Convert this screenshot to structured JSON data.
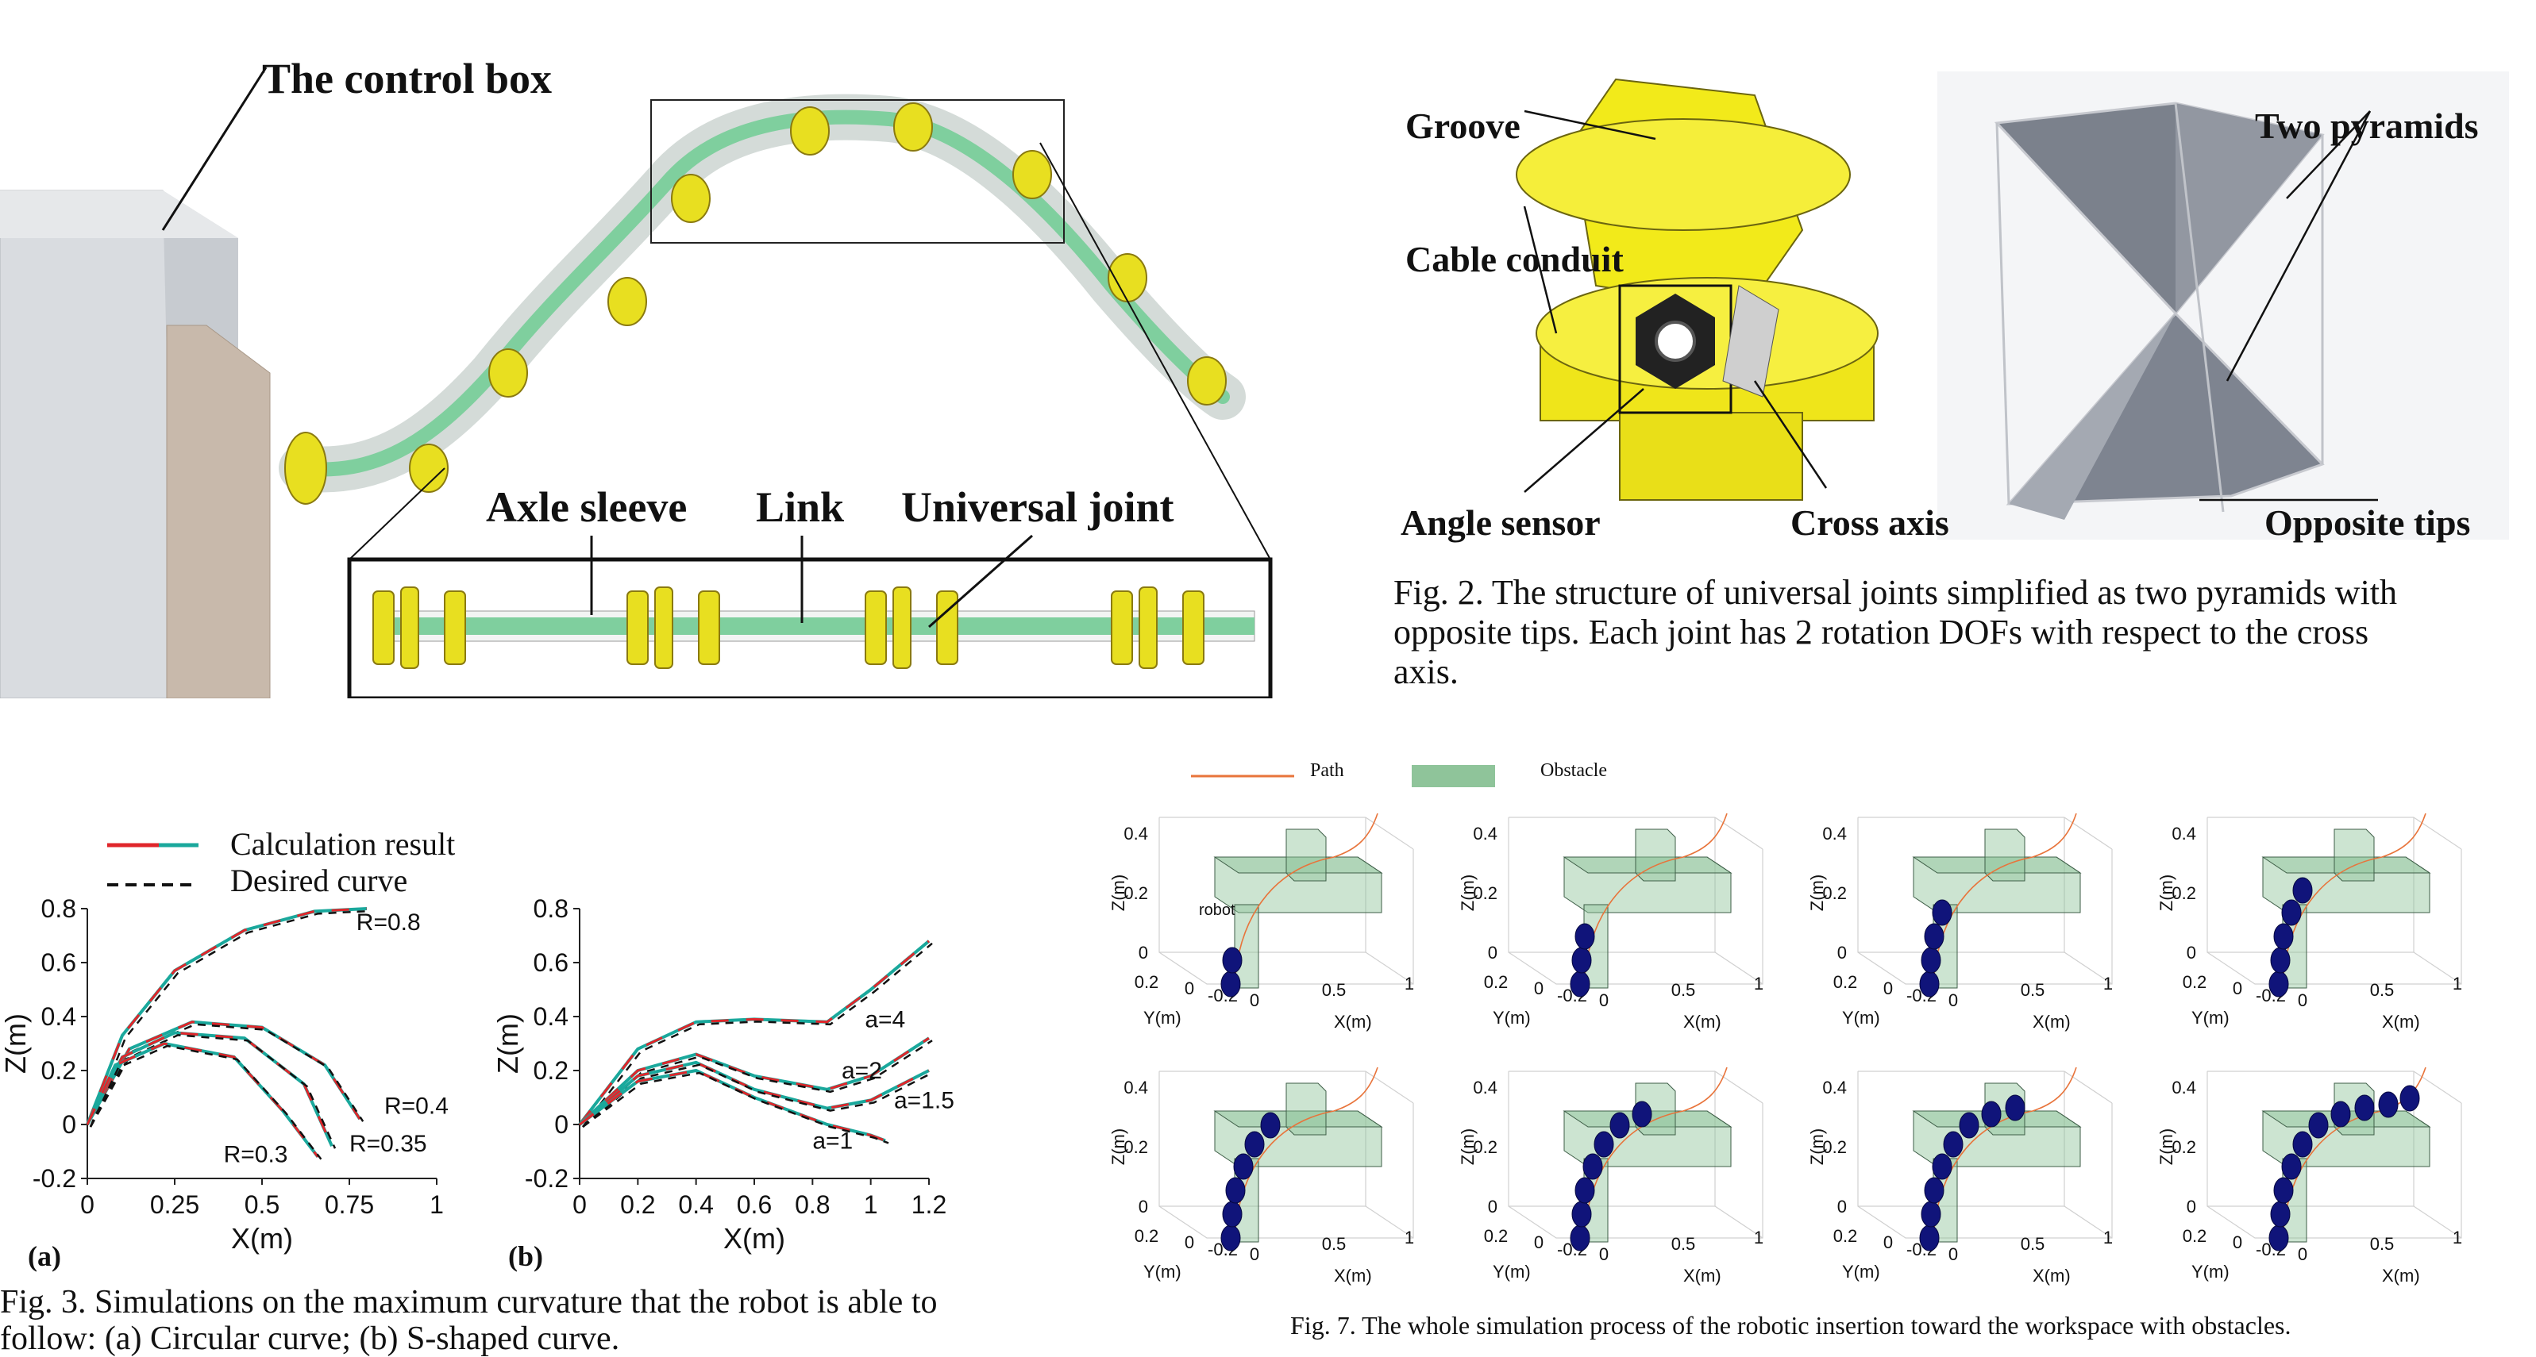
{
  "fig1": {
    "labels": {
      "control_box": "The control box",
      "axle_sleeve": "Axle sleeve",
      "link": "Link",
      "universal_joint": "Universal joint"
    }
  },
  "fig2": {
    "labels": {
      "groove": "Groove",
      "cable_conduit": "Cable conduit",
      "angle_sensor": "Angle sensor",
      "cross_axis": "Cross axis",
      "two_pyramids": "Two pyramids",
      "opposite_tips": "Opposite tips"
    },
    "caption": {
      "line1": "Fig. 2.  The structure of universal joints simplified as two pyramids with",
      "line2": "opposite tips. Each joint has 2 rotation DOFs with respect to the cross",
      "line3": "axis."
    }
  },
  "fig3": {
    "legend": {
      "calc": "Calculation result",
      "desired": "Desired curve"
    },
    "panel_a": {
      "tag": "(a)",
      "xlabel": "X(m)",
      "ylabel": "Z(m)",
      "xticks": [
        "0",
        "0.25",
        "0.5",
        "0.75",
        "1"
      ],
      "yticks": [
        "0.8",
        "0.6",
        "0.4",
        "0.2",
        "0",
        "-0.2"
      ],
      "curve_labels": [
        "R=0.8",
        "R=0.4",
        "R=0.35",
        "R=0.3"
      ]
    },
    "panel_b": {
      "tag": "(b)",
      "xlabel": "X(m)",
      "ylabel": "Z(m)",
      "xticks": [
        "0",
        "0.2",
        "0.4",
        "0.6",
        "0.8",
        "1",
        "1.2"
      ],
      "yticks": [
        "0.8",
        "0.6",
        "0.4",
        "0.2",
        "0",
        "-0.2"
      ],
      "curve_labels": [
        "a=4",
        "a=2",
        "a=1.5",
        "a=1"
      ]
    },
    "caption": {
      "line1": "Fig. 3.  Simulations on the maximum curvature that the robot is able to",
      "line2": "follow: (a) Circular curve; (b) S-shaped curve."
    }
  },
  "fig7": {
    "legend": {
      "path": "Path",
      "obstacle": "Obstacle"
    },
    "robot_label": "robot",
    "axis": {
      "zlabel": "Z(m)",
      "ylabel": "Y(m)",
      "xlabel": "X(m)",
      "zticks": [
        "0.4",
        "0.2",
        "0"
      ],
      "yticks": [
        "0.2",
        "0",
        "-0.2"
      ],
      "xticks": [
        "0",
        "0.5",
        "1"
      ]
    },
    "caption": "Fig. 7.  The whole simulation process of the robotic insertion toward the workspace with obstacles.",
    "colors": {
      "path": "#e8743b",
      "obstacle": "#8fc49a",
      "robot": "#10147a"
    }
  },
  "chart_data": [
    {
      "type": "line",
      "title": "",
      "panel": "(a)",
      "xlabel": "X(m)",
      "ylabel": "Z(m)",
      "xlim": [
        0,
        1
      ],
      "ylim": [
        -0.2,
        0.8
      ],
      "legend": [
        "Calculation result",
        "Desired curve"
      ],
      "series": [
        {
          "name": "R=0.8",
          "x": [
            0,
            0.1,
            0.25,
            0.45,
            0.65,
            0.8
          ],
          "y": [
            0,
            0.33,
            0.57,
            0.72,
            0.79,
            0.8
          ]
        },
        {
          "name": "R=0.4",
          "x": [
            0,
            0.12,
            0.3,
            0.5,
            0.68,
            0.78
          ],
          "y": [
            0,
            0.28,
            0.38,
            0.36,
            0.22,
            0.02
          ]
        },
        {
          "name": "R=0.35",
          "x": [
            0,
            0.1,
            0.25,
            0.45,
            0.62,
            0.7
          ],
          "y": [
            0,
            0.25,
            0.34,
            0.32,
            0.15,
            -0.08
          ]
        },
        {
          "name": "R=0.3",
          "x": [
            0,
            0.08,
            0.22,
            0.42,
            0.56,
            0.66
          ],
          "y": [
            0,
            0.22,
            0.3,
            0.25,
            0.05,
            -0.12
          ]
        }
      ]
    },
    {
      "type": "line",
      "title": "",
      "panel": "(b)",
      "xlabel": "X(m)",
      "ylabel": "Z(m)",
      "xlim": [
        0,
        1.2
      ],
      "ylim": [
        -0.2,
        0.8
      ],
      "legend": [
        "Calculation result",
        "Desired curve"
      ],
      "series": [
        {
          "name": "a=4",
          "x": [
            0,
            0.2,
            0.4,
            0.6,
            0.85,
            1.0,
            1.2
          ],
          "y": [
            0,
            0.28,
            0.38,
            0.39,
            0.38,
            0.5,
            0.68
          ]
        },
        {
          "name": "a=2",
          "x": [
            0,
            0.2,
            0.4,
            0.6,
            0.85,
            1.0,
            1.2
          ],
          "y": [
            0,
            0.2,
            0.26,
            0.18,
            0.13,
            0.18,
            0.32
          ]
        },
        {
          "name": "a=1.5",
          "x": [
            0,
            0.2,
            0.4,
            0.6,
            0.85,
            1.0,
            1.2
          ],
          "y": [
            0,
            0.18,
            0.23,
            0.13,
            0.06,
            0.09,
            0.2
          ]
        },
        {
          "name": "a=1",
          "x": [
            0,
            0.2,
            0.4,
            0.6,
            0.85,
            1.0,
            1.05
          ],
          "y": [
            0,
            0.16,
            0.2,
            0.1,
            0.0,
            -0.04,
            -0.06
          ]
        }
      ]
    }
  ]
}
